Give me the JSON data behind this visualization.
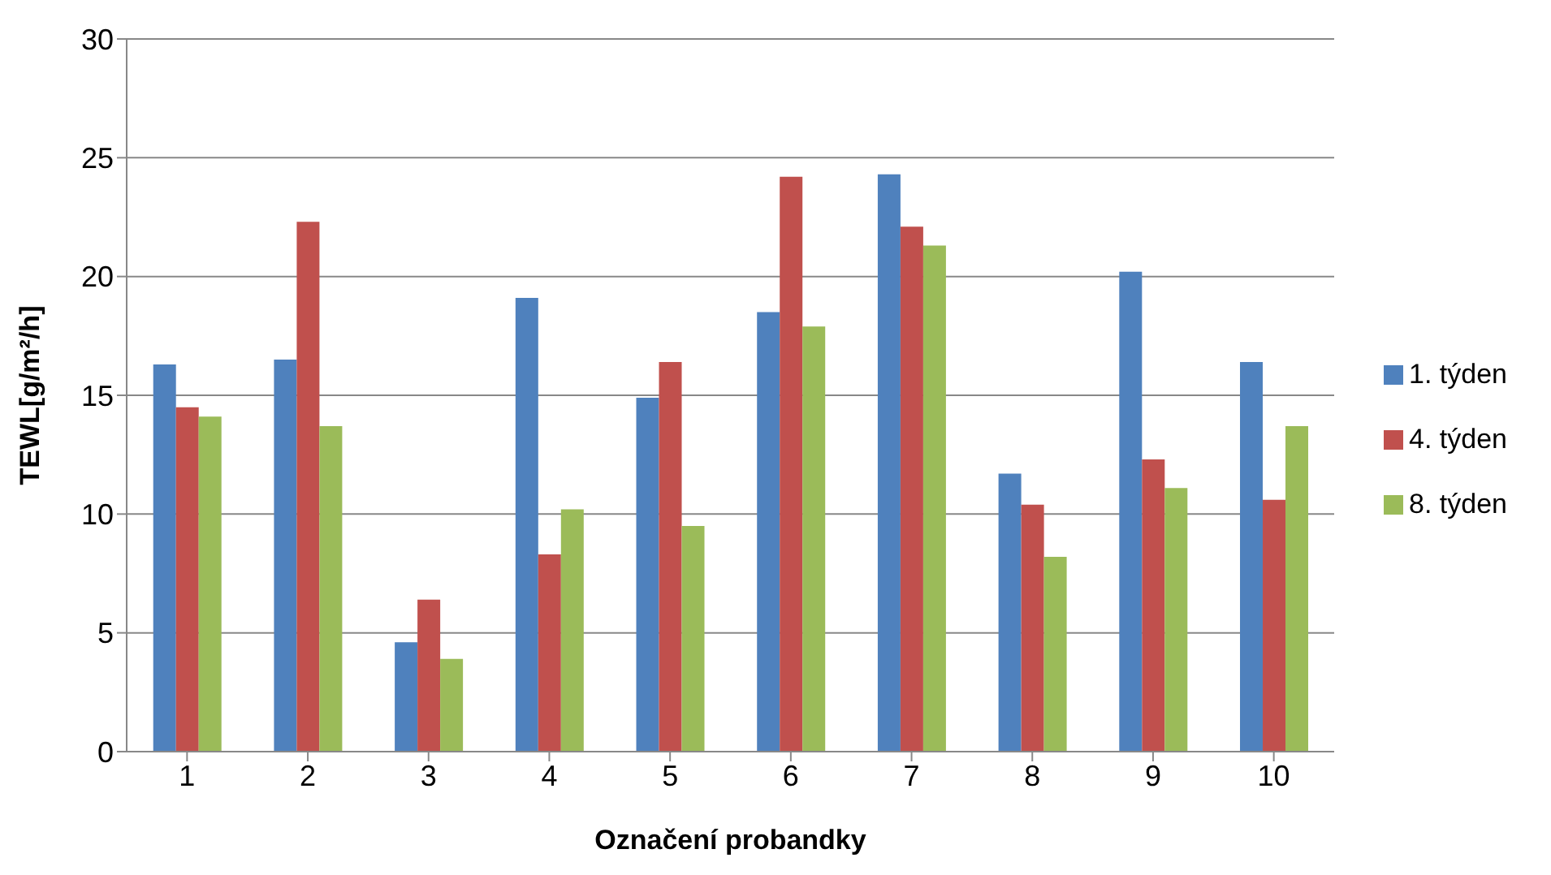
{
  "chart_data": {
    "type": "bar",
    "xlabel": "Označení probandky",
    "ylabel": "TEWL[g/m²/h]",
    "categories": [
      "1",
      "2",
      "3",
      "4",
      "5",
      "6",
      "7",
      "8",
      "9",
      "10"
    ],
    "series": [
      {
        "name": "1. týden",
        "color": "#4f81bd",
        "values": [
          16.3,
          16.5,
          4.6,
          19.1,
          14.9,
          18.5,
          24.3,
          11.7,
          20.2,
          16.4
        ]
      },
      {
        "name": "4. týden",
        "color": "#c0504d",
        "values": [
          14.5,
          22.3,
          6.4,
          8.3,
          16.4,
          24.2,
          22.1,
          10.4,
          12.3,
          10.6
        ]
      },
      {
        "name": "8. týden",
        "color": "#9bbb59",
        "values": [
          14.1,
          13.7,
          3.9,
          10.2,
          9.5,
          17.9,
          21.3,
          8.2,
          11.1,
          13.7
        ]
      }
    ],
    "ylim": [
      0,
      30
    ],
    "yticks": [
      0,
      5,
      10,
      15,
      20,
      25,
      30
    ],
    "grid": "y",
    "legend": "right"
  }
}
